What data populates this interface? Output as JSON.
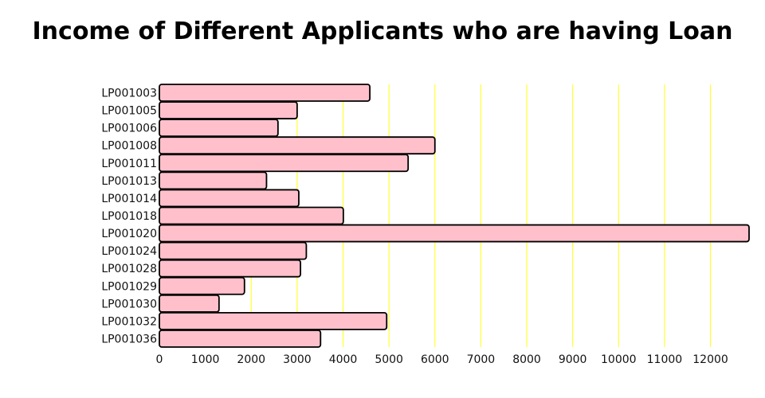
{
  "chart_data": {
    "type": "bar",
    "orientation": "horizontal",
    "title": "Income of Different Applicants who are having Loan",
    "xlabel": "",
    "ylabel": "",
    "categories": [
      "LP001003",
      "LP001005",
      "LP001006",
      "LP001008",
      "LP001011",
      "LP001013",
      "LP001014",
      "LP001018",
      "LP001020",
      "LP001024",
      "LP001028",
      "LP001029",
      "LP001030",
      "LP001032",
      "LP001036"
    ],
    "values": [
      4583,
      3000,
      2583,
      6000,
      5417,
      2333,
      3036,
      4006,
      12841,
      3200,
      3073,
      1853,
      1299,
      4950,
      3510
    ],
    "xlim": [
      0,
      12841
    ],
    "xticks": [
      0,
      1000,
      2000,
      3000,
      4000,
      5000,
      6000,
      7000,
      8000,
      9000,
      10000,
      11000,
      12000
    ],
    "grid": "vertical",
    "colors": {
      "bar_fill": "#ffc0cb",
      "bar_edge": "#000000",
      "grid": "#ffff33"
    }
  }
}
